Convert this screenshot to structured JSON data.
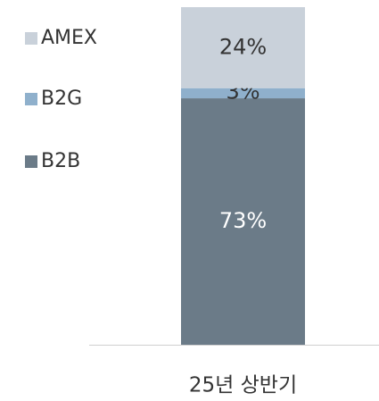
{
  "chart_data": {
    "type": "stacked_bar",
    "categories": [
      "25년 상반기"
    ],
    "series": [
      {
        "name": "B2B",
        "color": "#6b7b88",
        "values": [
          73
        ],
        "value_labels": [
          "73%"
        ]
      },
      {
        "name": "B2G",
        "color": "#8fb0cc",
        "values": [
          3
        ],
        "value_labels": [
          "3%"
        ]
      },
      {
        "name": "AMEX",
        "color": "#c9d1da",
        "values": [
          24
        ],
        "value_labels": [
          "24%"
        ]
      }
    ],
    "ylim": [
      0,
      100
    ],
    "legend": "left"
  }
}
